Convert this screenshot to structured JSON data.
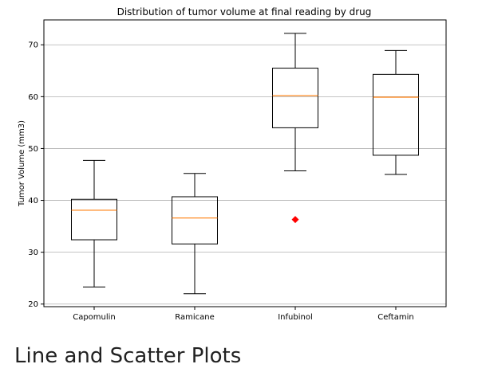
{
  "chart_data": {
    "type": "box",
    "title": "Distribution of tumor volume at final reading by drug",
    "xlabel": "",
    "ylabel": "Tumor Volume (mm3)",
    "ylim": [
      19.5,
      74.8
    ],
    "yticks": [
      20,
      30,
      40,
      50,
      60,
      70
    ],
    "grid": "horizontal",
    "categories": [
      "Capomulin",
      "Ramicane",
      "Infubinol",
      "Ceftamin"
    ],
    "boxes": [
      {
        "category": "Capomulin",
        "whisker_low": 23.3,
        "q1": 32.4,
        "median": 38.1,
        "q3": 40.2,
        "whisker_high": 47.7,
        "outliers": []
      },
      {
        "category": "Ramicane",
        "whisker_low": 22.0,
        "q1": 31.6,
        "median": 36.6,
        "q3": 40.7,
        "whisker_high": 45.2,
        "outliers": []
      },
      {
        "category": "Infubinol",
        "whisker_low": 45.7,
        "q1": 54.0,
        "median": 60.2,
        "q3": 65.5,
        "whisker_high": 72.2,
        "outliers": [
          36.3
        ]
      },
      {
        "category": "Ceftamin",
        "whisker_low": 45.0,
        "q1": 48.7,
        "median": 59.9,
        "q3": 64.3,
        "whisker_high": 68.9,
        "outliers": []
      }
    ],
    "colors": {
      "box": "#000000",
      "median": "#ff7f0e",
      "grid": "#b0b0b0",
      "outlier": "#ff0000"
    }
  },
  "footer_text": "Line and Scatter Plots"
}
